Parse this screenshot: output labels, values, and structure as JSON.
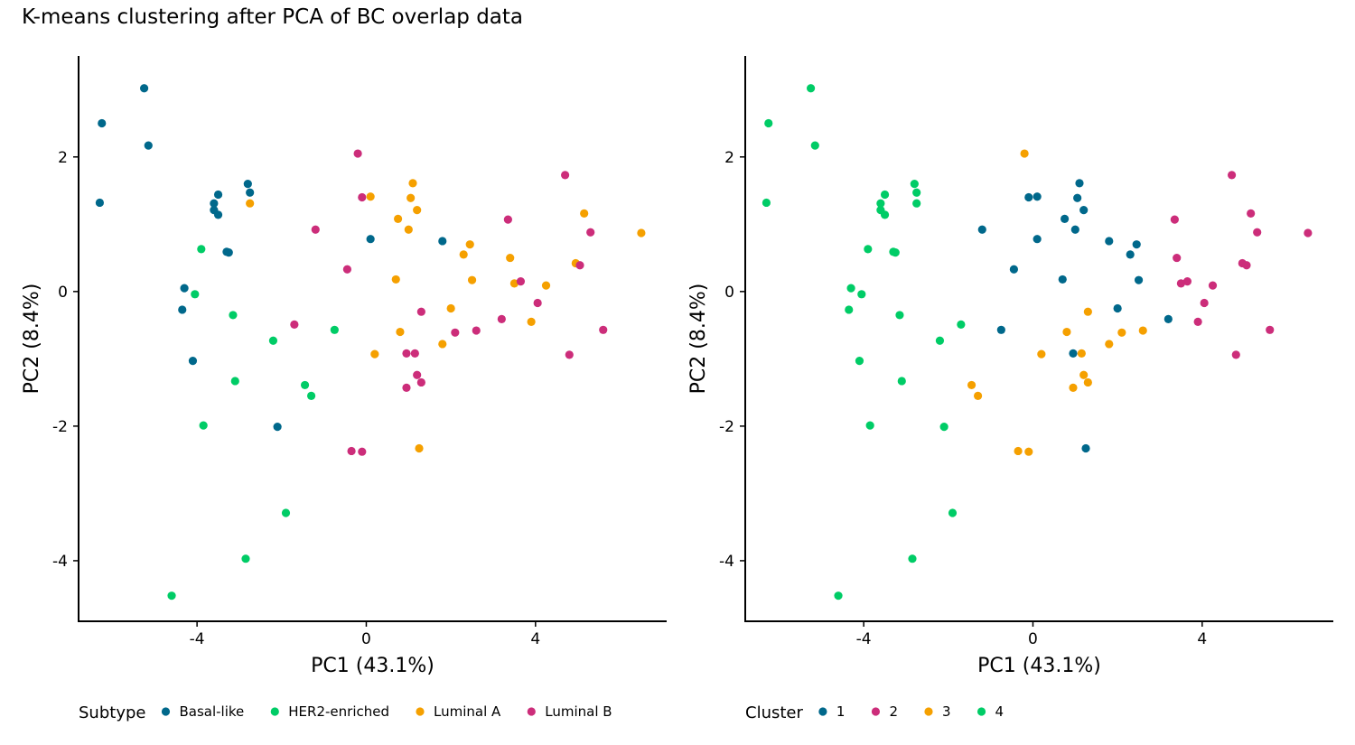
{
  "title": "K-means clustering after PCA of BC overlap data",
  "chart_data": [
    {
      "type": "scatter",
      "xlabel": "PC1 (43.1%)",
      "ylabel": "PC2 (8.4%)",
      "xlim": [
        -6.8,
        7.1
      ],
      "ylim": [
        -4.9,
        3.5
      ],
      "xticks": [
        -4,
        0,
        4
      ],
      "yticks": [
        -4,
        -2,
        0,
        2
      ],
      "grid": false,
      "legend": {
        "title": "Subtype",
        "position": "bottom"
      },
      "series": [
        {
          "name": "Basal-like",
          "color": "#00688B",
          "points": [
            [
              -6.25,
              2.5
            ],
            [
              -5.25,
              3.02
            ],
            [
              -5.15,
              2.17
            ],
            [
              -6.3,
              1.32
            ],
            [
              -2.8,
              1.6
            ],
            [
              -2.75,
              1.47
            ],
            [
              -3.5,
              1.44
            ],
            [
              -3.6,
              1.31
            ],
            [
              -3.6,
              1.21
            ],
            [
              -3.5,
              1.14
            ],
            [
              -3.3,
              0.59
            ],
            [
              -3.25,
              0.58
            ],
            [
              -4.3,
              0.05
            ],
            [
              -4.35,
              -0.27
            ],
            [
              -4.1,
              -1.03
            ],
            [
              -2.1,
              -2.01
            ],
            [
              0.1,
              0.78
            ],
            [
              1.8,
              0.75
            ]
          ]
        },
        {
          "name": "HER2-enriched",
          "color": "#00CC66",
          "points": [
            [
              -3.9,
              0.63
            ],
            [
              -4.05,
              -0.04
            ],
            [
              -3.15,
              -0.35
            ],
            [
              -2.2,
              -0.73
            ],
            [
              -0.75,
              -0.57
            ],
            [
              -3.1,
              -1.33
            ],
            [
              -1.45,
              -1.39
            ],
            [
              -1.3,
              -1.55
            ],
            [
              -3.85,
              -1.99
            ],
            [
              -1.9,
              -3.29
            ],
            [
              -2.85,
              -3.97
            ],
            [
              -4.6,
              -4.52
            ]
          ]
        },
        {
          "name": "Luminal A",
          "color": "#F5A000",
          "points": [
            [
              -2.75,
              1.31
            ],
            [
              0.1,
              1.41
            ],
            [
              1.1,
              1.61
            ],
            [
              1.05,
              1.39
            ],
            [
              1.2,
              1.21
            ],
            [
              0.75,
              1.08
            ],
            [
              1.0,
              0.92
            ],
            [
              5.15,
              1.16
            ],
            [
              6.5,
              0.87
            ],
            [
              2.45,
              0.7
            ],
            [
              2.3,
              0.55
            ],
            [
              3.4,
              0.5
            ],
            [
              4.95,
              0.42
            ],
            [
              0.7,
              0.18
            ],
            [
              2.5,
              0.17
            ],
            [
              3.5,
              0.12
            ],
            [
              4.25,
              0.09
            ],
            [
              2.0,
              -0.25
            ],
            [
              3.9,
              -0.45
            ],
            [
              0.8,
              -0.6
            ],
            [
              1.8,
              -0.78
            ],
            [
              0.2,
              -0.93
            ],
            [
              1.25,
              -2.33
            ]
          ]
        },
        {
          "name": "Luminal B",
          "color": "#CC2D7A",
          "points": [
            [
              -0.2,
              2.05
            ],
            [
              -0.1,
              1.4
            ],
            [
              4.7,
              1.73
            ],
            [
              3.35,
              1.07
            ],
            [
              -1.2,
              0.92
            ],
            [
              5.3,
              0.88
            ],
            [
              -0.45,
              0.33
            ],
            [
              5.05,
              0.39
            ],
            [
              3.65,
              0.15
            ],
            [
              4.05,
              -0.17
            ],
            [
              1.3,
              -0.3
            ],
            [
              -1.7,
              -0.49
            ],
            [
              3.2,
              -0.41
            ],
            [
              2.6,
              -0.58
            ],
            [
              5.6,
              -0.57
            ],
            [
              2.1,
              -0.61
            ],
            [
              0.95,
              -0.92
            ],
            [
              1.15,
              -0.92
            ],
            [
              4.8,
              -0.94
            ],
            [
              1.2,
              -1.24
            ],
            [
              1.3,
              -1.35
            ],
            [
              0.95,
              -1.43
            ],
            [
              -0.35,
              -2.37
            ],
            [
              -0.1,
              -2.38
            ]
          ]
        }
      ]
    },
    {
      "type": "scatter",
      "xlabel": "PC1 (43.1%)",
      "ylabel": "PC2 (8.4%)",
      "xlim": [
        -6.8,
        7.1
      ],
      "ylim": [
        -4.9,
        3.5
      ],
      "xticks": [
        -4,
        0,
        4
      ],
      "yticks": [
        -4,
        -2,
        0,
        2
      ],
      "grid": false,
      "legend": {
        "title": "Cluster",
        "position": "bottom"
      },
      "series": [
        {
          "name": "1",
          "color": "#00688B",
          "points": [
            [
              1.1,
              1.61
            ],
            [
              -0.1,
              1.4
            ],
            [
              0.1,
              1.41
            ],
            [
              1.05,
              1.39
            ],
            [
              1.2,
              1.21
            ],
            [
              0.75,
              1.08
            ],
            [
              -1.2,
              0.92
            ],
            [
              1.0,
              0.92
            ],
            [
              0.1,
              0.78
            ],
            [
              1.8,
              0.75
            ],
            [
              2.45,
              0.7
            ],
            [
              2.3,
              0.55
            ],
            [
              -0.45,
              0.33
            ],
            [
              0.7,
              0.18
            ],
            [
              2.5,
              0.17
            ],
            [
              2.0,
              -0.25
            ],
            [
              3.2,
              -0.41
            ],
            [
              -0.75,
              -0.57
            ],
            [
              0.95,
              -0.92
            ],
            [
              1.25,
              -2.33
            ]
          ]
        },
        {
          "name": "2",
          "color": "#CC2D7A",
          "points": [
            [
              4.7,
              1.73
            ],
            [
              5.15,
              1.16
            ],
            [
              3.35,
              1.07
            ],
            [
              5.3,
              0.88
            ],
            [
              6.5,
              0.87
            ],
            [
              3.4,
              0.5
            ],
            [
              4.95,
              0.42
            ],
            [
              5.05,
              0.39
            ],
            [
              3.65,
              0.15
            ],
            [
              3.5,
              0.12
            ],
            [
              4.25,
              0.09
            ],
            [
              4.05,
              -0.17
            ],
            [
              3.9,
              -0.45
            ],
            [
              5.6,
              -0.57
            ],
            [
              4.8,
              -0.94
            ]
          ]
        },
        {
          "name": "3",
          "color": "#F5A000",
          "points": [
            [
              -0.2,
              2.05
            ],
            [
              1.3,
              -0.3
            ],
            [
              0.8,
              -0.6
            ],
            [
              2.6,
              -0.58
            ],
            [
              2.1,
              -0.61
            ],
            [
              1.8,
              -0.78
            ],
            [
              0.2,
              -0.93
            ],
            [
              1.15,
              -0.92
            ],
            [
              1.2,
              -1.24
            ],
            [
              1.3,
              -1.35
            ],
            [
              -1.45,
              -1.39
            ],
            [
              0.95,
              -1.43
            ],
            [
              -1.3,
              -1.55
            ],
            [
              -0.35,
              -2.37
            ],
            [
              -0.1,
              -2.38
            ]
          ]
        },
        {
          "name": "4",
          "color": "#00CC66",
          "points": [
            [
              -5.25,
              3.02
            ],
            [
              -6.25,
              2.5
            ],
            [
              -5.15,
              2.17
            ],
            [
              -6.3,
              1.32
            ],
            [
              -2.8,
              1.6
            ],
            [
              -2.75,
              1.47
            ],
            [
              -3.5,
              1.44
            ],
            [
              -3.6,
              1.31
            ],
            [
              -2.75,
              1.31
            ],
            [
              -3.6,
              1.21
            ],
            [
              -3.5,
              1.14
            ],
            [
              -3.9,
              0.63
            ],
            [
              -3.3,
              0.59
            ],
            [
              -3.25,
              0.58
            ],
            [
              -4.3,
              0.05
            ],
            [
              -4.05,
              -0.04
            ],
            [
              -4.35,
              -0.27
            ],
            [
              -3.15,
              -0.35
            ],
            [
              -1.7,
              -0.49
            ],
            [
              -2.2,
              -0.73
            ],
            [
              -4.1,
              -1.03
            ],
            [
              -3.1,
              -1.33
            ],
            [
              -3.85,
              -1.99
            ],
            [
              -2.1,
              -2.01
            ],
            [
              -1.9,
              -3.29
            ],
            [
              -2.85,
              -3.97
            ],
            [
              -4.6,
              -4.52
            ]
          ]
        }
      ]
    }
  ]
}
